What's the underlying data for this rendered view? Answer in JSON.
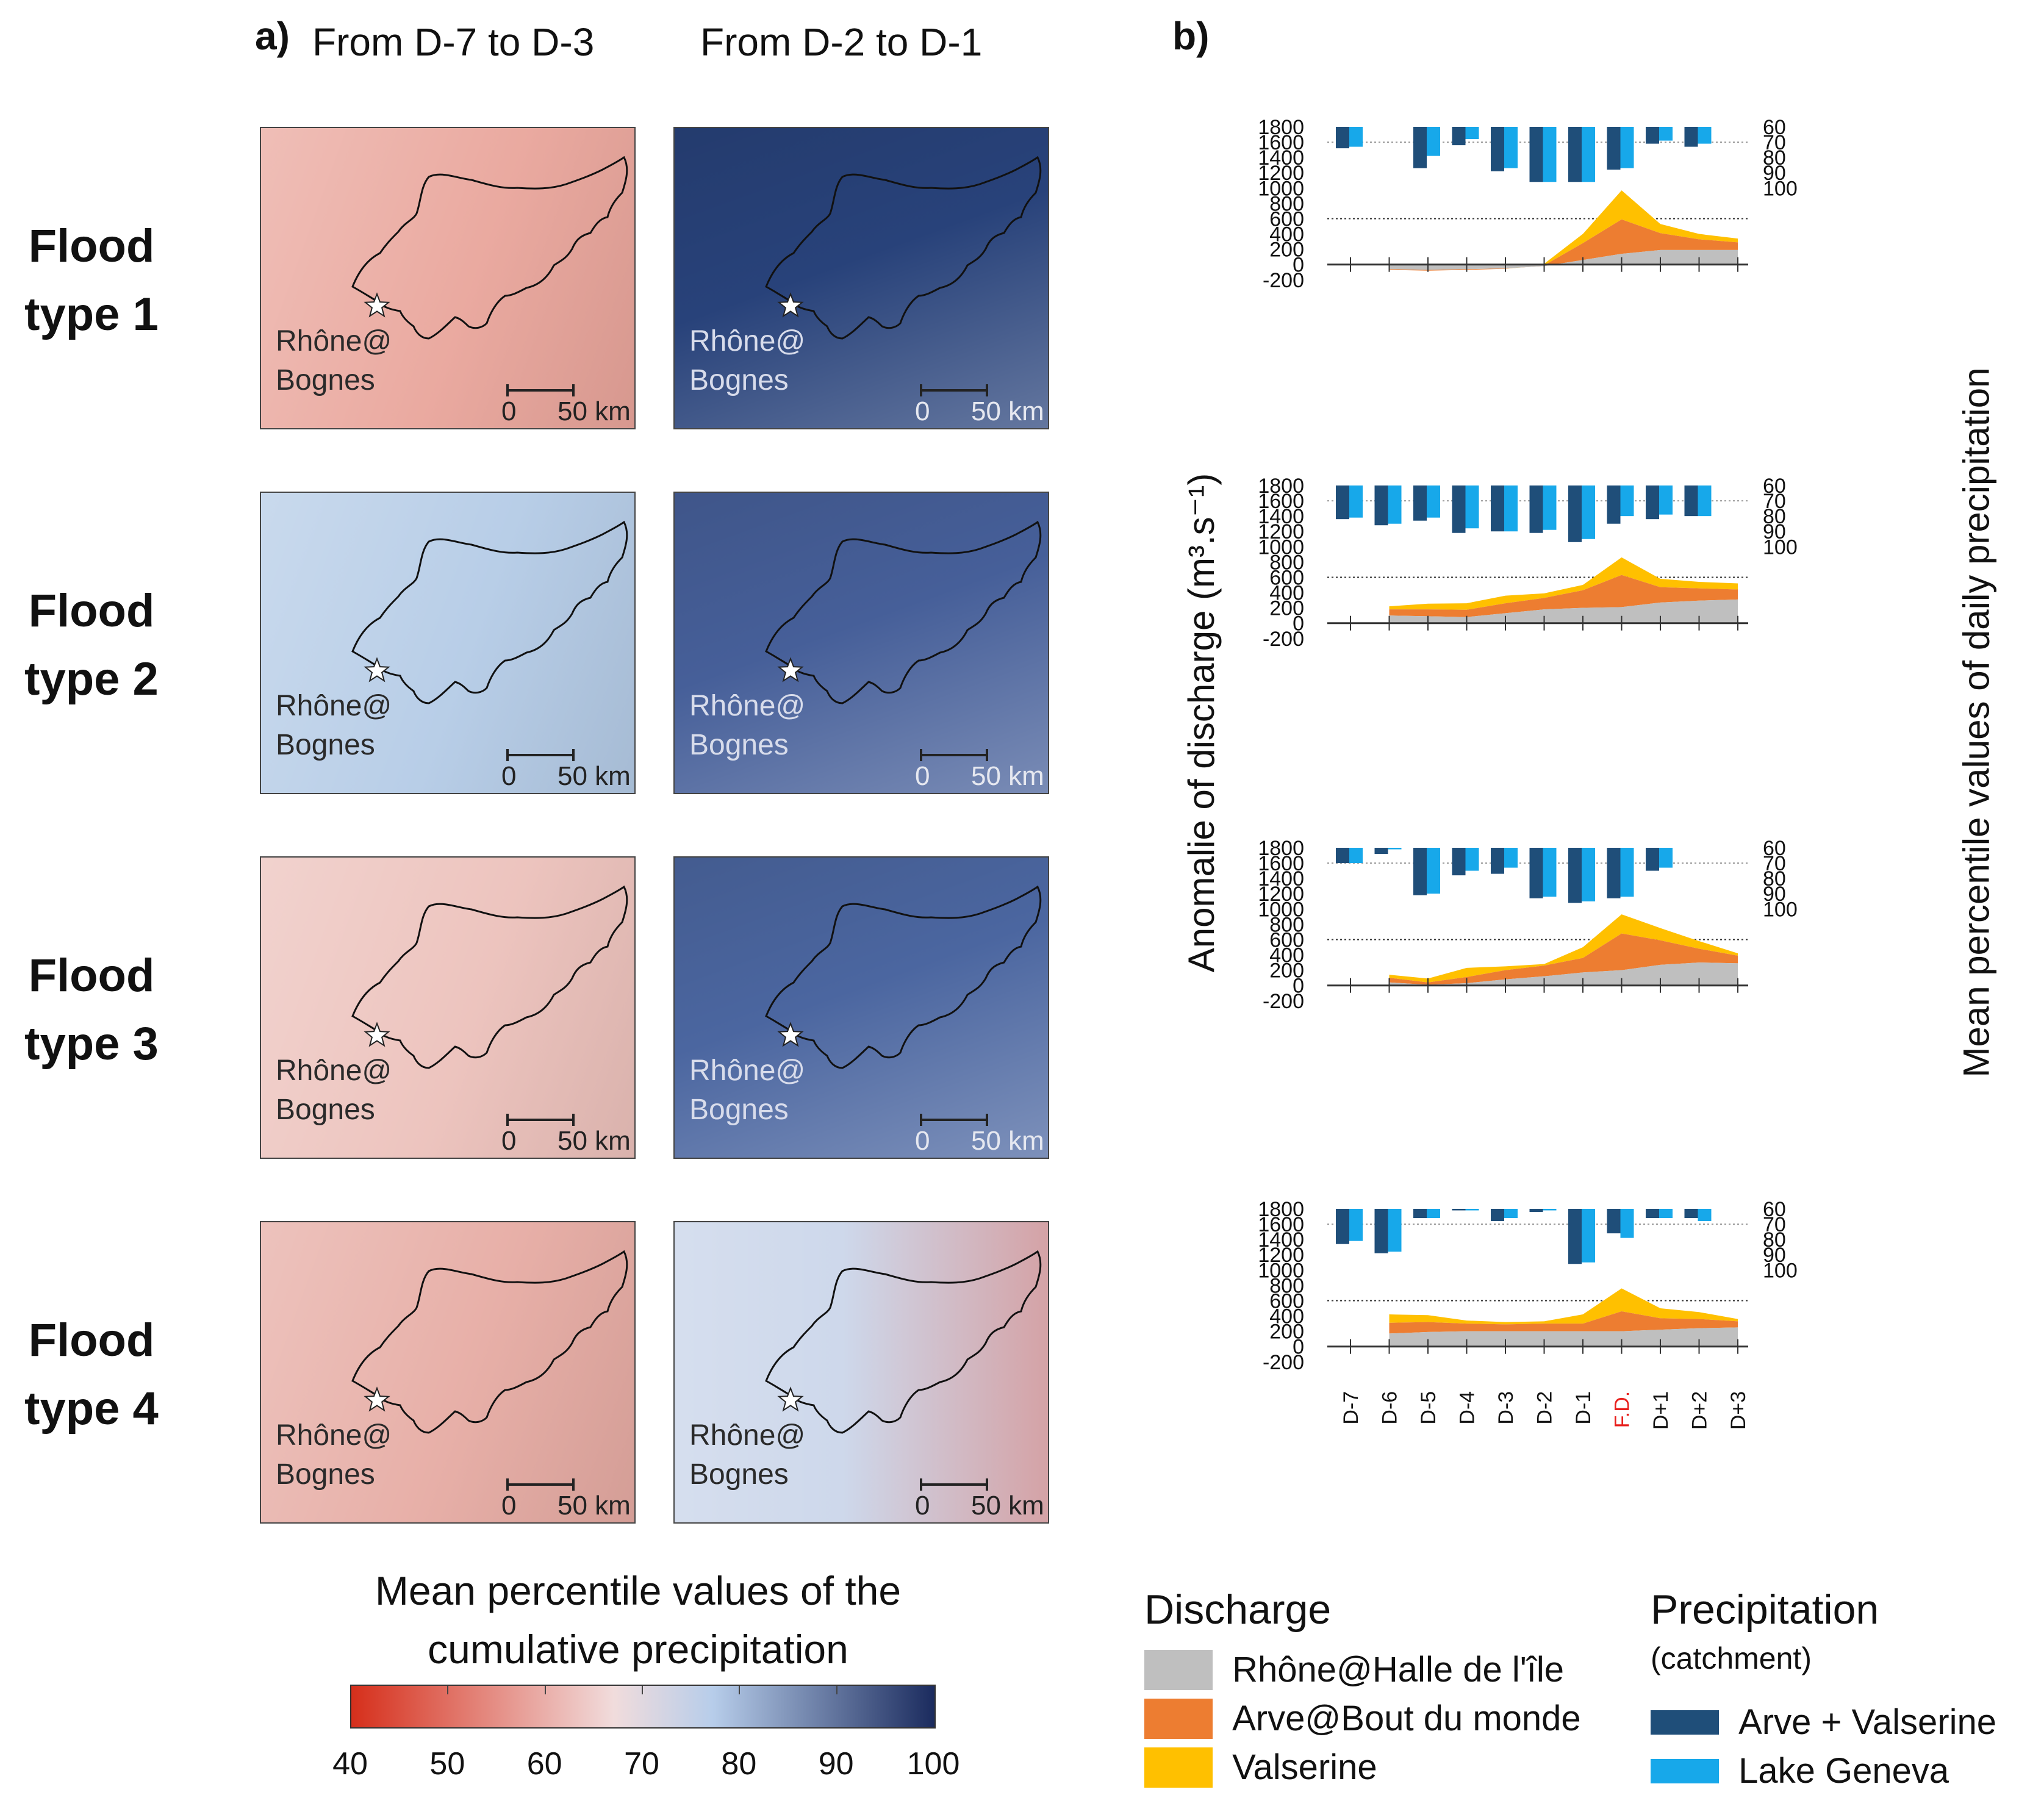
{
  "panel_a": {
    "label": "a)",
    "columns": [
      "From D-7 to D-3",
      "From D-2 to D-1"
    ],
    "row_labels": [
      "Flood type 1",
      "Flood type 2",
      "Flood type 3",
      "Flood type 4"
    ],
    "station_label": [
      "Rhône@",
      "Bognes"
    ],
    "scalebar": {
      "start": "0",
      "end": "50 km"
    },
    "map_colors": [
      [
        "#e9a59b",
        "#28427a"
      ],
      [
        "#b4cbe6",
        "#465f99"
      ],
      [
        "#ecc1bb",
        "#4b66a0"
      ],
      [
        "#e6aba3",
        "#cbd6ea"
      ]
    ],
    "colorbar": {
      "title": [
        "Mean percentile values of the",
        "cumulative precipitation"
      ],
      "ticks": [
        "40",
        "50",
        "60",
        "70",
        "80",
        "90",
        "100"
      ],
      "colors": [
        "#d62f1b",
        "#f1dcdc",
        "#b7cdea",
        "#1b2b5e"
      ]
    }
  },
  "panel_b": {
    "label": "b)",
    "ylabel_left": "Anomalie of discharge (m³.s⁻¹)",
    "ylabel_right": "Mean percentile values of daily precipitation",
    "left_ticks": [
      "1800",
      "1600",
      "1400",
      "1200",
      "1000",
      "800",
      "600",
      "400",
      "200",
      "0",
      "-200"
    ],
    "right_ticks": [
      "60",
      "70",
      "80",
      "90",
      "100"
    ],
    "x_labels": [
      "D-7",
      "D-6",
      "D-5",
      "D-4",
      "D-3",
      "D-2",
      "D-1",
      "F.D.",
      "D+1",
      "D+2",
      "D+3"
    ],
    "highlight_label": "F.D.",
    "colors": {
      "rhone": "#bfbfbf",
      "arve": "#ed7d31",
      "valserine": "#ffc000",
      "arve_valserine": "#1f4e79",
      "lake_geneva": "#17a8ea",
      "highlight": "#e8201d"
    },
    "legend": {
      "discharge_title": "Discharge",
      "discharge_items": [
        "Rhône@Halle de l'île",
        "Arve@Bout du monde",
        "Valserine"
      ],
      "precip_title": "Precipitation",
      "precip_subtitle": "(catchment)",
      "precip_items": [
        "Arve + Valserine",
        "Lake Geneva"
      ]
    }
  },
  "chart_data": [
    {
      "type": "area",
      "title": "Flood type 1",
      "categories": [
        "D-7",
        "D-6",
        "D-5",
        "D-4",
        "D-3",
        "D-2",
        "D-1",
        "F.D.",
        "D+1",
        "D+2",
        "D+3"
      ],
      "ylim": [
        -200,
        1800
      ],
      "series": [
        {
          "name": "Rhône@Halle de l'île",
          "values": [
            null,
            -60,
            -70,
            -60,
            -50,
            -20,
            60,
            140,
            190,
            190,
            190
          ]
        },
        {
          "name": "Arve@Bout du monde",
          "values": [
            null,
            -10,
            -10,
            -10,
            -5,
            10,
            220,
            450,
            220,
            140,
            100
          ]
        },
        {
          "name": "Valserine",
          "values": [
            null,
            0,
            0,
            0,
            0,
            20,
            120,
            380,
            120,
            70,
            50
          ]
        }
      ],
      "precipitation": {
        "ylim": [
          60,
          100
        ],
        "series": [
          {
            "name": "Arve + Valserine",
            "values": [
              74,
              null,
              87,
              72,
              89,
              96,
              96,
              88,
              71,
              73,
              null
            ]
          },
          {
            "name": "Lake Geneva",
            "values": [
              73,
              null,
              79,
              68,
              87,
              96,
              96,
              87,
              69,
              71,
              null
            ]
          }
        ]
      }
    },
    {
      "type": "area",
      "title": "Flood type 2",
      "categories": [
        "D-7",
        "D-6",
        "D-5",
        "D-4",
        "D-3",
        "D-2",
        "D-1",
        "F.D.",
        "D+1",
        "D+2",
        "D+3"
      ],
      "ylim": [
        -200,
        1800
      ],
      "series": [
        {
          "name": "Rhône@Halle de l'île",
          "values": [
            null,
            100,
            90,
            80,
            130,
            180,
            200,
            210,
            270,
            295,
            310
          ]
        },
        {
          "name": "Arve@Bout du monde",
          "values": [
            null,
            80,
            90,
            95,
            130,
            150,
            230,
            420,
            200,
            160,
            130
          ]
        },
        {
          "name": "Valserine",
          "values": [
            null,
            40,
            75,
            85,
            100,
            60,
            70,
            230,
            110,
            85,
            80
          ]
        }
      ],
      "precipitation": {
        "ylim": [
          60,
          100
        ],
        "series": [
          {
            "name": "Arve + Valserine",
            "values": [
              82,
              86,
              83,
              91,
              90,
              91,
              97,
              85,
              82,
              80,
              null
            ]
          },
          {
            "name": "Lake Geneva",
            "values": [
              81,
              85,
              81,
              88,
              90,
              89,
              95,
              80,
              79,
              80,
              null
            ]
          }
        ]
      }
    },
    {
      "type": "area",
      "title": "Flood type 3",
      "categories": [
        "D-7",
        "D-6",
        "D-5",
        "D-4",
        "D-3",
        "D-2",
        "D-1",
        "F.D.",
        "D+1",
        "D+2",
        "D+3"
      ],
      "ylim": [
        -200,
        1800
      ],
      "series": [
        {
          "name": "Rhône@Halle de l'île",
          "values": [
            null,
            40,
            10,
            30,
            80,
            120,
            170,
            200,
            270,
            300,
            290
          ]
        },
        {
          "name": "Arve@Bout du monde",
          "values": [
            null,
            60,
            30,
            80,
            120,
            140,
            190,
            480,
            320,
            180,
            100
          ]
        },
        {
          "name": "Valserine",
          "values": [
            null,
            40,
            50,
            120,
            50,
            20,
            140,
            250,
            160,
            100,
            30
          ]
        }
      ],
      "precipitation": {
        "ylim": [
          60,
          100
        ],
        "series": [
          {
            "name": "Arve + Valserine",
            "values": [
              70,
              64,
              91,
              78,
              77,
              93,
              96,
              93,
              75,
              null,
              null
            ]
          },
          {
            "name": "Lake Geneva",
            "values": [
              70,
              61,
              90,
              75,
              73,
              92,
              95,
              92,
              73,
              null,
              null
            ]
          }
        ]
      }
    },
    {
      "type": "area",
      "title": "Flood type 4",
      "categories": [
        "D-7",
        "D-6",
        "D-5",
        "D-4",
        "D-3",
        "D-2",
        "D-1",
        "F.D.",
        "D+1",
        "D+2",
        "D+3"
      ],
      "ylim": [
        -200,
        1800
      ],
      "series": [
        {
          "name": "Rhône@Halle de l'île",
          "values": [
            null,
            170,
            190,
            200,
            200,
            200,
            200,
            200,
            220,
            240,
            250
          ]
        },
        {
          "name": "Arve@Bout du monde",
          "values": [
            null,
            140,
            130,
            100,
            90,
            100,
            100,
            260,
            150,
            120,
            80
          ]
        },
        {
          "name": "Valserine",
          "values": [
            null,
            110,
            90,
            40,
            30,
            30,
            120,
            300,
            130,
            90,
            30
          ]
        }
      ],
      "precipitation": {
        "ylim": [
          60,
          100
        ],
        "series": [
          {
            "name": "Arve + Valserine",
            "values": [
              83,
              89,
              66,
              61,
              68,
              62,
              96,
              76,
              66,
              66,
              null
            ]
          },
          {
            "name": "Lake Geneva",
            "values": [
              81,
              88,
              66,
              61,
              66,
              61,
              95,
              79,
              66,
              68,
              null
            ]
          }
        ]
      }
    }
  ]
}
